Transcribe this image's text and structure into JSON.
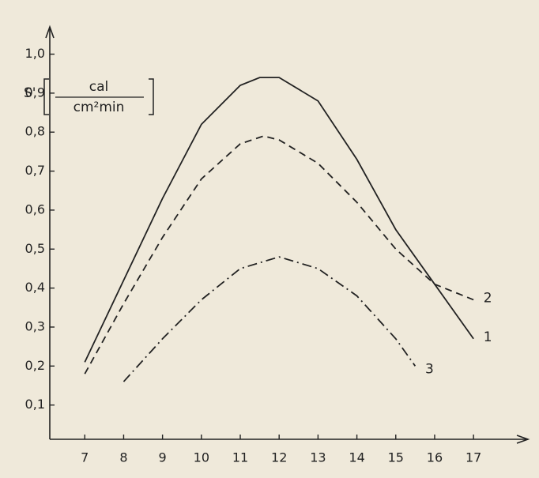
{
  "chart_data": {
    "type": "line",
    "ylabel": "S'",
    "yunit_num": "cal",
    "yunit_den": "cm²min",
    "xlim": [
      6.1,
      18.4
    ],
    "ylim": [
      0,
      1.07
    ],
    "xticks": [
      7,
      8,
      9,
      10,
      11,
      12,
      13,
      14,
      15,
      16,
      17
    ],
    "yticks": [
      {
        "value": 0.1,
        "label": "0,1"
      },
      {
        "value": 0.2,
        "label": "0,2"
      },
      {
        "value": 0.3,
        "label": "0,3"
      },
      {
        "value": 0.4,
        "label": "0,4"
      },
      {
        "value": 0.5,
        "label": "0,5"
      },
      {
        "value": 0.6,
        "label": "0,6"
      },
      {
        "value": 0.7,
        "label": "0,7"
      },
      {
        "value": 0.8,
        "label": "0,8"
      },
      {
        "value": 0.9,
        "label": "0,9"
      },
      {
        "value": 1.0,
        "label": "1,0"
      }
    ],
    "series": [
      {
        "name": "1",
        "color": "#222222",
        "style": "solid",
        "x": [
          7,
          8,
          9,
          10,
          11,
          11.5,
          12,
          13,
          14,
          15,
          16,
          17
        ],
        "values": [
          0.21,
          0.42,
          0.63,
          0.82,
          0.92,
          0.94,
          0.94,
          0.88,
          0.73,
          0.55,
          0.41,
          0.27
        ]
      },
      {
        "name": "2",
        "color": "#222222",
        "style": "dashed",
        "x": [
          7,
          8,
          9,
          10,
          11,
          11.6,
          12,
          13,
          14,
          15,
          16,
          17
        ],
        "values": [
          0.18,
          0.36,
          0.53,
          0.68,
          0.77,
          0.79,
          0.78,
          0.72,
          0.62,
          0.5,
          0.41,
          0.37
        ]
      },
      {
        "name": "3",
        "color": "#222222",
        "style": "dashdot",
        "x": [
          8,
          9,
          10,
          11,
          12,
          13,
          14,
          15,
          15.5
        ],
        "values": [
          0.16,
          0.27,
          0.37,
          0.45,
          0.48,
          0.45,
          0.38,
          0.27,
          0.2
        ]
      }
    ]
  }
}
